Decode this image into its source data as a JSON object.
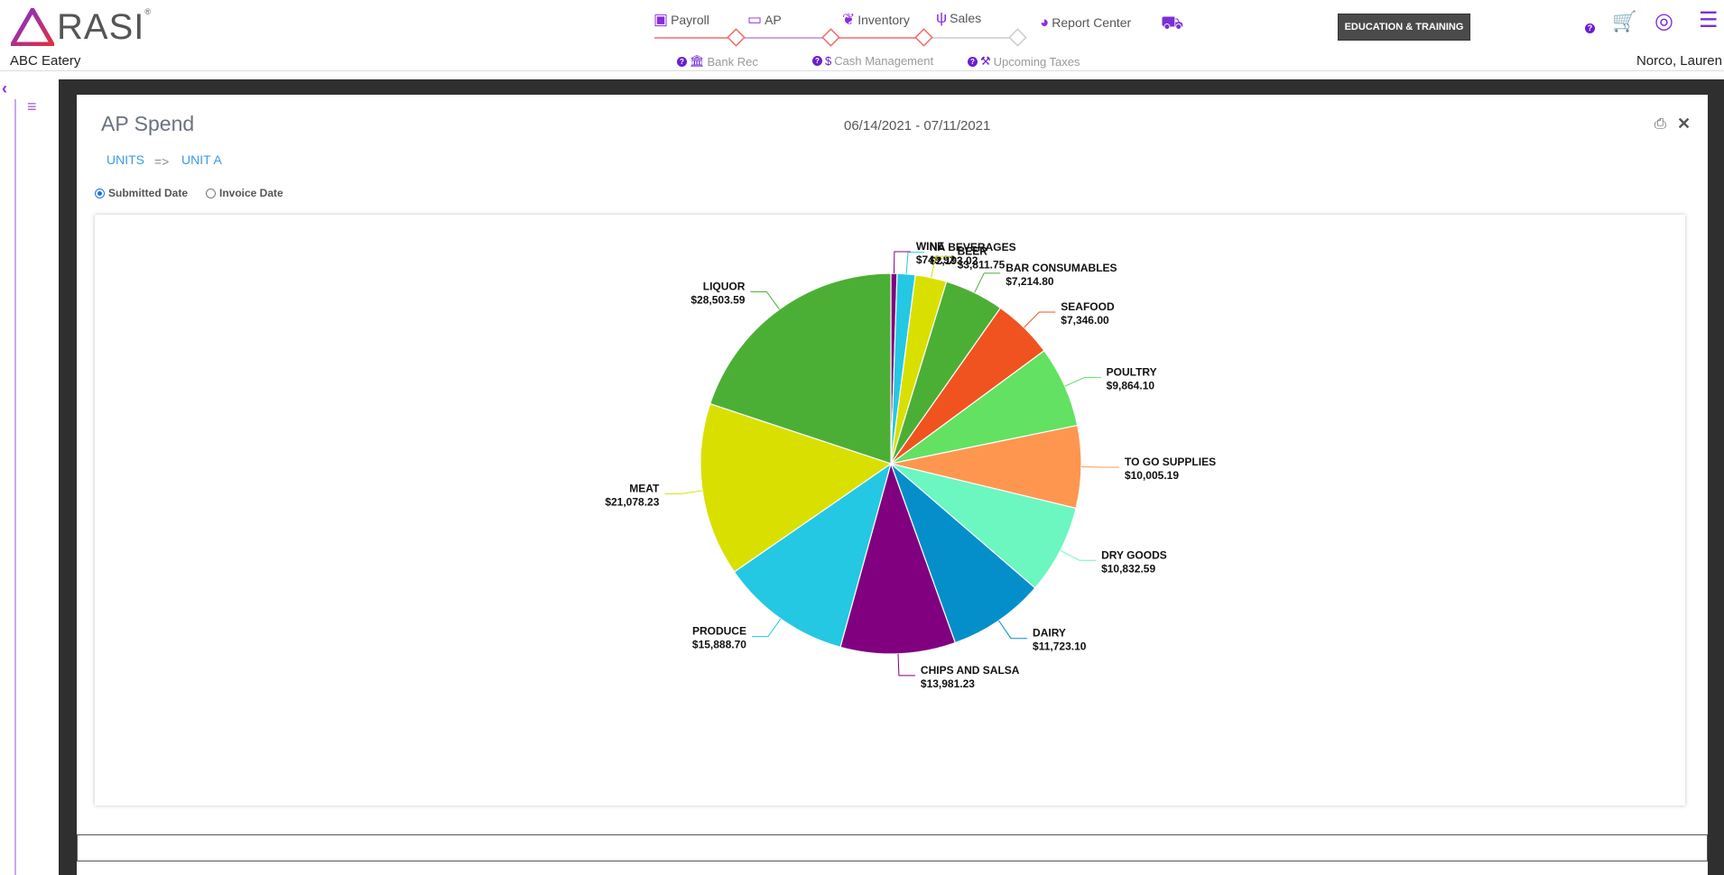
{
  "header": {
    "logo": "RASI",
    "restaurant": "ABC Eatery",
    "user": "Norco, Lauren",
    "nav": [
      {
        "label": "Payroll",
        "icon": "money-icon"
      },
      {
        "label": "AP",
        "icon": "credit-card-icon"
      },
      {
        "label": "Inventory",
        "icon": "leaf-icon"
      },
      {
        "label": "Sales",
        "icon": "utensils-icon"
      },
      {
        "label": "Report Center",
        "icon": "pie-chart-icon"
      }
    ],
    "subnav": [
      {
        "label": "Bank Rec",
        "icon": "bank-icon"
      },
      {
        "label": "Cash Management",
        "icon": "dollar-icon"
      },
      {
        "label": "Upcoming Taxes",
        "icon": "gavel-icon"
      }
    ],
    "education_button": "EDUCATION & TRAINING",
    "colors": {
      "accent": "#7b2fd8",
      "progress_line": "#f26b6b"
    }
  },
  "panel": {
    "title": "AP Spend",
    "date_range": "06/14/2021 - 07/11/2021",
    "breadcrumb": [
      "UNITS",
      "=>",
      "UNIT A"
    ],
    "radio_options": [
      {
        "label": "Submitted Date",
        "selected": true
      },
      {
        "label": "Invoice Date",
        "selected": false
      }
    ]
  },
  "chart_data": {
    "type": "pie",
    "title": "",
    "slices": [
      {
        "label": "WINE",
        "value": 749.92,
        "value_label": "$749.92",
        "color": "#800080"
      },
      {
        "label": "NA BEVERAGES",
        "value": 2193.02,
        "value_label": "$2,193.02",
        "color": "#24c8e3"
      },
      {
        "label": "BEER",
        "value": 3811.75,
        "value_label": "$3,811.75",
        "color": "#d9e000"
      },
      {
        "label": "BAR CONSUMABLES",
        "value": 7214.8,
        "value_label": "$7,214.80",
        "color": "#4caf35"
      },
      {
        "label": "SEAFOOD",
        "value": 7346.0,
        "value_label": "$7,346.00",
        "color": "#f0531f"
      },
      {
        "label": "POULTRY",
        "value": 9864.1,
        "value_label": "$9,864.10",
        "color": "#63e163"
      },
      {
        "label": "TO GO SUPPLIES",
        "value": 10005.19,
        "value_label": "$10,005.19",
        "color": "#ff9650"
      },
      {
        "label": "DRY GOODS",
        "value": 10832.59,
        "value_label": "$10,832.59",
        "color": "#6cf6c0"
      },
      {
        "label": "DAIRY",
        "value": 11723.1,
        "value_label": "$11,723.10",
        "color": "#048fca"
      },
      {
        "label": "CHIPS AND SALSA",
        "value": 13981.23,
        "value_label": "$13,981.23",
        "color": "#800080"
      },
      {
        "label": "PRODUCE",
        "value": 15888.7,
        "value_label": "$15,888.70",
        "color": "#24c8e3"
      },
      {
        "label": "MEAT",
        "value": 21078.23,
        "value_label": "$21,078.23",
        "color": "#d9e000"
      },
      {
        "label": "LIQUOR",
        "value": 28503.59,
        "value_label": "$28,503.59",
        "color": "#4caf35"
      }
    ]
  }
}
